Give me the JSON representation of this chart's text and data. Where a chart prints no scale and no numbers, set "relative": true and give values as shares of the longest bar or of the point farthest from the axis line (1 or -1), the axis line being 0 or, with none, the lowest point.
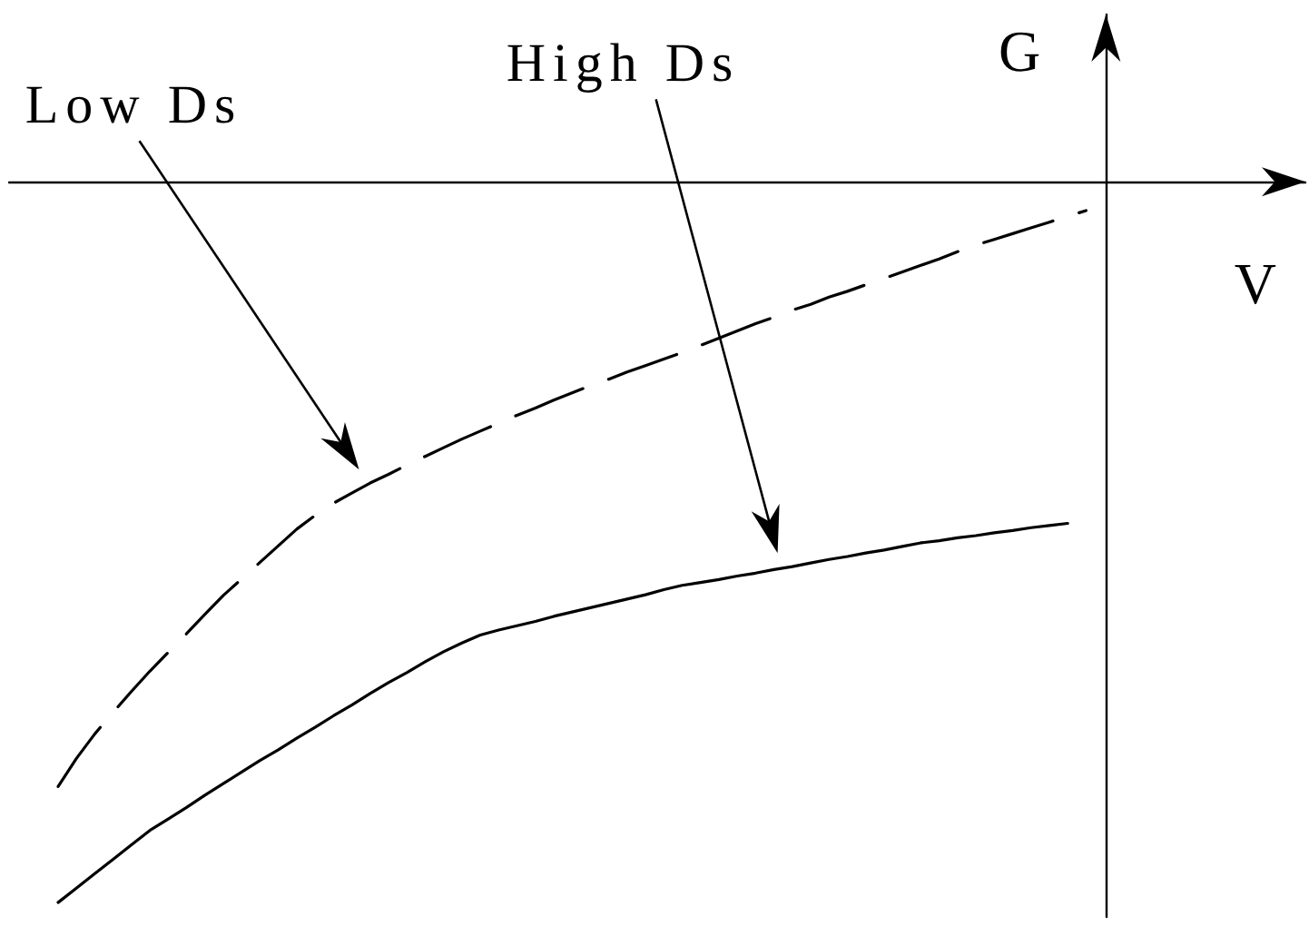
{
  "chart_data": {
    "type": "line",
    "relative": true,
    "xlabel": "V",
    "ylabel": "G",
    "marker": "none",
    "categories": [
      null,
      null,
      null,
      null,
      null,
      null,
      null,
      null,
      null,
      null,
      null,
      null,
      null,
      null,
      null,
      null,
      null,
      null,
      null,
      null,
      null,
      null,
      null,
      null,
      null,
      null,
      null,
      null,
      null,
      null,
      null,
      null,
      null,
      null,
      null,
      null,
      null,
      null,
      null,
      null,
      null,
      null,
      null,
      null,
      null,
      null,
      null,
      null,
      null,
      null,
      null,
      null,
      null,
      null,
      null,
      null,
      null
    ],
    "series": [
      {
        "name": "Low Ds",
        "color": "#000000",
        "line_style": "dashed",
        "values": [
          -0.839,
          -0.8,
          -0.766,
          -0.736,
          -0.707,
          -0.679,
          -0.653,
          -0.627,
          -0.6,
          -0.574,
          -0.551,
          -0.528,
          -0.505,
          -0.482,
          -0.463,
          -0.446,
          -0.432,
          -0.418,
          -0.406,
          -0.393,
          -0.381,
          -0.369,
          -0.357,
          -0.346,
          -0.335,
          -0.324,
          -0.314,
          -0.303,
          -0.293,
          -0.283,
          -0.274,
          -0.264,
          -0.255,
          -0.246,
          -0.237,
          -0.227,
          -0.217,
          -0.207,
          -0.197,
          -0.188,
          -0.178,
          -0.17,
          -0.16,
          -0.152,
          -0.143,
          -0.134,
          -0.125,
          -0.116,
          -0.107,
          -0.097,
          -0.088,
          -0.08,
          -0.072,
          -0.064,
          -0.056,
          -0.048,
          -0.04
        ]
      },
      {
        "name": "High Ds",
        "color": "#000000",
        "line_style": "solid",
        "values": [
          -1,
          -0.98,
          -0.96,
          -0.94,
          -0.92,
          -0.9,
          -0.884,
          -0.868,
          -0.851,
          -0.835,
          -0.819,
          -0.803,
          -0.788,
          -0.772,
          -0.757,
          -0.741,
          -0.726,
          -0.71,
          -0.695,
          -0.681,
          -0.666,
          -0.652,
          -0.64,
          -0.629,
          -0.622,
          -0.616,
          -0.61,
          -0.603,
          -0.597,
          -0.591,
          -0.585,
          -0.579,
          -0.573,
          -0.566,
          -0.56,
          -0.556,
          -0.552,
          -0.547,
          -0.543,
          -0.538,
          -0.534,
          -0.529,
          -0.524,
          -0.52,
          -0.515,
          -0.511,
          -0.506,
          -0.501,
          -0.498,
          -0.494,
          -0.491,
          -0.487,
          -0.484,
          -0.48,
          -0.477,
          -0.474,
          null
        ]
      }
    ]
  }
}
